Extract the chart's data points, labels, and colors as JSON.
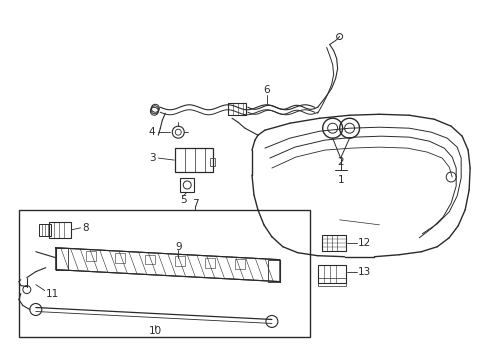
{
  "bg_color": "#ffffff",
  "line_color": "#2a2a2a",
  "fig_width": 4.89,
  "fig_height": 3.6,
  "dpi": 100,
  "bumper_color": "#3a3a3a",
  "label_fontsize": 7.5
}
